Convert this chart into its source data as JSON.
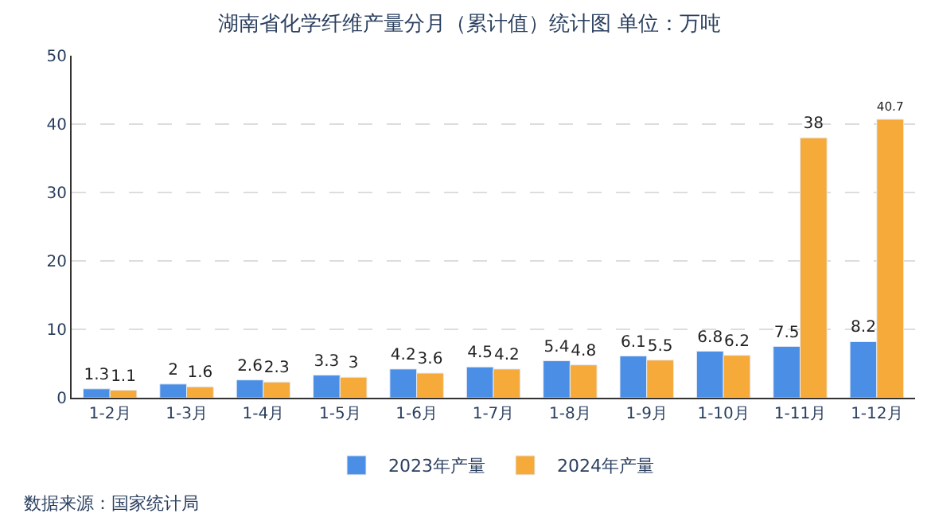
{
  "chart_data": {
    "type": "bar",
    "title": "湖南省化学纤维产量分月（累计值）统计图 单位：万吨",
    "categories": [
      "1-2月",
      "1-3月",
      "1-4月",
      "1-5月",
      "1-6月",
      "1-7月",
      "1-8月",
      "1-9月",
      "1-10月",
      "1-11月",
      "1-12月"
    ],
    "series": [
      {
        "name": "2023年产量",
        "color": "#4a8ee6",
        "values": [
          1.3,
          2,
          2.6,
          3.3,
          4.2,
          4.5,
          5.4,
          6.1,
          6.8,
          7.5,
          8.2
        ]
      },
      {
        "name": "2024年产量",
        "color": "#f5aa3a",
        "values": [
          1.1,
          1.6,
          2.3,
          3,
          3.6,
          4.2,
          4.8,
          5.5,
          6.2,
          38,
          40.7
        ]
      }
    ],
    "ylim": [
      0,
      50
    ],
    "yticks": [
      0,
      10,
      20,
      30,
      40,
      50
    ],
    "grid": "y",
    "legend": "bottom",
    "data_labels": true,
    "annotations": [
      "数据来源：国家统计局"
    ]
  }
}
